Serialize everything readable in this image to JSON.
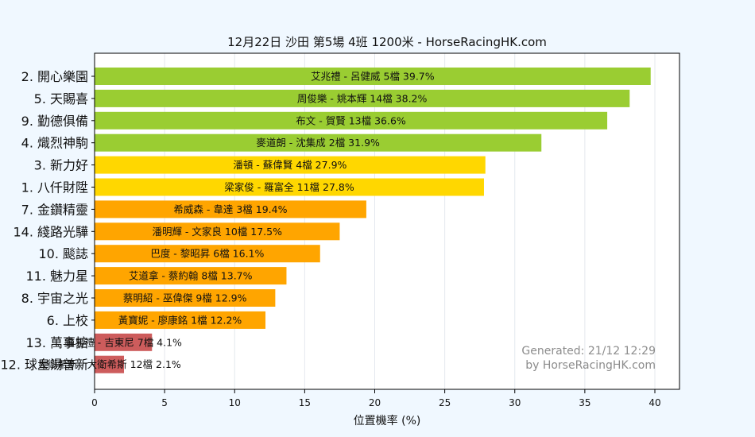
{
  "chart_data": {
    "type": "bar",
    "orientation": "horizontal",
    "title": "12月22日  沙田  第5場  4班  1200米 - HorseRacingHK.com",
    "xlabel": "位置機率 (%)",
    "ylabel": "",
    "xlim": [
      0,
      41.7
    ],
    "xticks": [
      0,
      5,
      10,
      15,
      20,
      25,
      30,
      35,
      40
    ],
    "grid": "vertical",
    "categories": [
      "2. 開心樂園",
      "5. 天賜喜",
      "9. 勤德俱備",
      "4. 熾烈神駒",
      "3. 新力好",
      "1. 八仟財陞",
      "7. 金鑽精靈",
      "14. 綫路光驊",
      "10. 颷誌",
      "11. 魅力星",
      "8. 宇宙之光",
      "6. 上校",
      "13. 萬事掂",
      "12. 球皇湯普新"
    ],
    "values": [
      39.7,
      38.2,
      36.6,
      31.9,
      27.9,
      27.8,
      19.4,
      17.5,
      16.1,
      13.7,
      12.9,
      12.2,
      4.1,
      2.1
    ],
    "bar_labels": [
      "艾兆禮 - 呂健威 5檔  39.7%",
      "周俊樂 - 姚本輝 14檔  38.2%",
      "布文 - 賀賢 13檔  36.6%",
      "麥道朗 - 沈集成 2檔  31.9%",
      "潘頓 - 蘇偉賢 4檔  27.9%",
      "梁家俊 - 羅富全 11檔  27.8%",
      "希威森 - 韋達 3檔  19.4%",
      "潘明輝 - 文家良 10檔  17.5%",
      "巴度 - 黎昭昇 6檔  16.1%",
      "艾道拿 - 蔡約翰 8檔  13.7%",
      "蔡明紹 - 巫偉傑 9檔  12.9%",
      "黃寶妮 - 廖康銘 1檔  12.2%",
      "鍾易禮 - 吉東尼 7檔  4.1%",
      "大衛希斯 - 大衛希斯 12檔  2.1%"
    ],
    "colors": [
      "#9acd32",
      "#9acd32",
      "#9acd32",
      "#9acd32",
      "#ffd700",
      "#ffd700",
      "#ffa500",
      "#ffa500",
      "#ffa500",
      "#ffa500",
      "#ffa500",
      "#ffa500",
      "#cd5c5c",
      "#cd5c5c"
    ]
  },
  "footer": {
    "line1": "Generated: 21/12 12:29",
    "line2": "by HorseRacingHK.com"
  }
}
